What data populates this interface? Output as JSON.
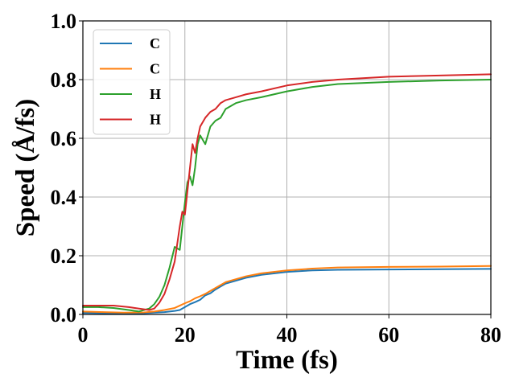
{
  "chart_data": {
    "type": "line",
    "title": "",
    "xlabel": "Time (fs)",
    "ylabel": "Speed (Å/fs)",
    "xlim": [
      0,
      80
    ],
    "ylim": [
      0,
      1.0
    ],
    "xticks": [
      0,
      20,
      40,
      60,
      80
    ],
    "xtick_labels": [
      "0",
      "20",
      "40",
      "60",
      "80"
    ],
    "yticks": [
      0.0,
      0.2,
      0.4,
      0.6,
      0.8,
      1.0
    ],
    "ytick_labels": [
      "0.0",
      "0.2",
      "0.4",
      "0.6",
      "0.8",
      "1.0"
    ],
    "grid": true,
    "legend_position": "top-left",
    "series": [
      {
        "name": "C",
        "color": "#1f77b4",
        "x": [
          0,
          4,
          8,
          12,
          14,
          16,
          18,
          19,
          20,
          21,
          22,
          23,
          24,
          25,
          26,
          27,
          28,
          30,
          32,
          35,
          40,
          45,
          50,
          60,
          70,
          80
        ],
        "y": [
          0.005,
          0.004,
          0.003,
          0.004,
          0.006,
          0.008,
          0.012,
          0.015,
          0.025,
          0.035,
          0.042,
          0.05,
          0.065,
          0.072,
          0.085,
          0.095,
          0.105,
          0.115,
          0.125,
          0.135,
          0.145,
          0.15,
          0.152,
          0.153,
          0.154,
          0.155
        ]
      },
      {
        "name": "C",
        "color": "#ff7f0e",
        "x": [
          0,
          4,
          8,
          12,
          14,
          16,
          18,
          19,
          20,
          21,
          22,
          23,
          24,
          25,
          26,
          27,
          28,
          30,
          32,
          35,
          40,
          45,
          50,
          60,
          70,
          80
        ],
        "y": [
          0.01,
          0.008,
          0.006,
          0.007,
          0.01,
          0.015,
          0.022,
          0.03,
          0.038,
          0.045,
          0.055,
          0.062,
          0.07,
          0.08,
          0.09,
          0.1,
          0.11,
          0.12,
          0.13,
          0.14,
          0.15,
          0.156,
          0.16,
          0.162,
          0.163,
          0.165
        ]
      },
      {
        "name": "H",
        "color": "#2ca02c",
        "x": [
          0,
          3,
          6,
          9,
          11,
          13,
          14,
          15,
          16,
          17,
          18,
          19,
          19.5,
          20,
          20.5,
          21,
          21.5,
          22,
          22.5,
          23,
          24,
          25,
          26,
          27,
          28,
          30,
          32,
          35,
          40,
          45,
          50,
          60,
          70,
          80
        ],
        "y": [
          0.025,
          0.025,
          0.022,
          0.015,
          0.01,
          0.02,
          0.035,
          0.06,
          0.1,
          0.16,
          0.23,
          0.22,
          0.3,
          0.38,
          0.45,
          0.47,
          0.44,
          0.5,
          0.58,
          0.61,
          0.58,
          0.64,
          0.66,
          0.67,
          0.7,
          0.72,
          0.73,
          0.74,
          0.76,
          0.775,
          0.785,
          0.792,
          0.797,
          0.8
        ]
      },
      {
        "name": "H",
        "color": "#d62728",
        "x": [
          0,
          3,
          6,
          9,
          11,
          13,
          14,
          15,
          16,
          17,
          18,
          19,
          19.5,
          20,
          20.5,
          21,
          21.5,
          22,
          22.5,
          23,
          24,
          25,
          26,
          27,
          28,
          30,
          32,
          35,
          40,
          45,
          50,
          60,
          70,
          80
        ],
        "y": [
          0.03,
          0.03,
          0.03,
          0.025,
          0.02,
          0.015,
          0.02,
          0.04,
          0.07,
          0.12,
          0.18,
          0.3,
          0.35,
          0.34,
          0.42,
          0.5,
          0.58,
          0.55,
          0.6,
          0.64,
          0.67,
          0.69,
          0.7,
          0.72,
          0.73,
          0.74,
          0.75,
          0.76,
          0.78,
          0.792,
          0.8,
          0.81,
          0.814,
          0.818
        ]
      }
    ]
  }
}
